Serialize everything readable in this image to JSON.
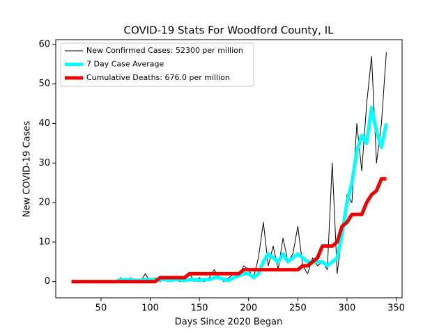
{
  "chart_data": {
    "type": "line",
    "title": "COVID-19 Stats For Woodford County, IL",
    "xlabel": "Days Since 2020 Began",
    "ylabel": "New COVID-19 Cases",
    "xlim": [
      4,
      356
    ],
    "ylim": [
      -4.1,
      61.2
    ],
    "xticks": [
      50,
      100,
      150,
      200,
      250,
      300,
      350
    ],
    "yticks": [
      0,
      10,
      20,
      30,
      40,
      50,
      60
    ],
    "grid": false,
    "legend": "upper left",
    "x": [
      20,
      25,
      30,
      35,
      40,
      45,
      50,
      55,
      60,
      65,
      70,
      75,
      80,
      85,
      90,
      95,
      100,
      105,
      110,
      115,
      120,
      125,
      130,
      135,
      140,
      145,
      150,
      155,
      160,
      165,
      170,
      175,
      180,
      185,
      190,
      195,
      200,
      205,
      210,
      215,
      220,
      225,
      230,
      235,
      240,
      245,
      250,
      255,
      260,
      265,
      270,
      275,
      280,
      285,
      290,
      295,
      300,
      305,
      310,
      315,
      320,
      325,
      330,
      335,
      340
    ],
    "series": [
      {
        "name": "New Confirmed Cases: 52300 per million",
        "color": "#000000",
        "width": 1,
        "values": [
          0,
          0,
          0,
          0,
          0,
          0,
          0,
          0,
          0,
          0,
          1,
          0,
          1,
          0,
          0,
          2,
          0,
          1,
          0,
          1,
          0,
          1,
          0,
          1,
          2,
          0,
          1,
          0,
          1,
          3,
          1,
          0,
          1,
          2,
          1,
          4,
          3,
          1,
          6,
          15,
          4,
          9,
          3,
          11,
          5,
          7,
          14,
          4,
          2,
          6,
          4,
          5,
          3,
          30,
          2,
          12,
          22,
          20,
          40,
          28,
          45,
          57,
          30,
          40,
          58
        ]
      },
      {
        "name": "7 Day Case Average",
        "color": "#00ffff",
        "width": 5,
        "values": [
          0,
          0,
          0,
          0,
          0,
          0,
          0,
          0,
          0,
          0,
          0.5,
          0.5,
          0.5,
          0.3,
          0.3,
          0.5,
          0.5,
          0.5,
          0.5,
          0.5,
          0.3,
          0.5,
          0.5,
          0.3,
          0.5,
          0.5,
          0.3,
          0.5,
          0.5,
          1,
          1,
          0.5,
          0.3,
          1,
          1.5,
          2,
          2,
          1,
          2,
          5,
          7,
          6,
          5,
          7,
          5,
          6,
          7,
          6,
          5,
          5,
          5,
          5,
          4,
          5,
          6,
          12,
          20,
          25,
          33,
          37,
          35,
          44,
          38,
          34,
          40
        ]
      },
      {
        "name": "Cumulative Deaths: 676.0 per million",
        "color": "#ee0000",
        "width": 5,
        "values": [
          0,
          0,
          0,
          0,
          0,
          0,
          0,
          0,
          0,
          0,
          0,
          0,
          0,
          0,
          0,
          0,
          0,
          0,
          1,
          1,
          1,
          1,
          1,
          1,
          2,
          2,
          2,
          2,
          2,
          2,
          2,
          2,
          2,
          2,
          2,
          3,
          3,
          3,
          3,
          3,
          3,
          3,
          3,
          3,
          3,
          3,
          3,
          4,
          4,
          5,
          6,
          9,
          9,
          9,
          10,
          14,
          15,
          17,
          17,
          17,
          20,
          22,
          23,
          26,
          26
        ]
      }
    ]
  }
}
